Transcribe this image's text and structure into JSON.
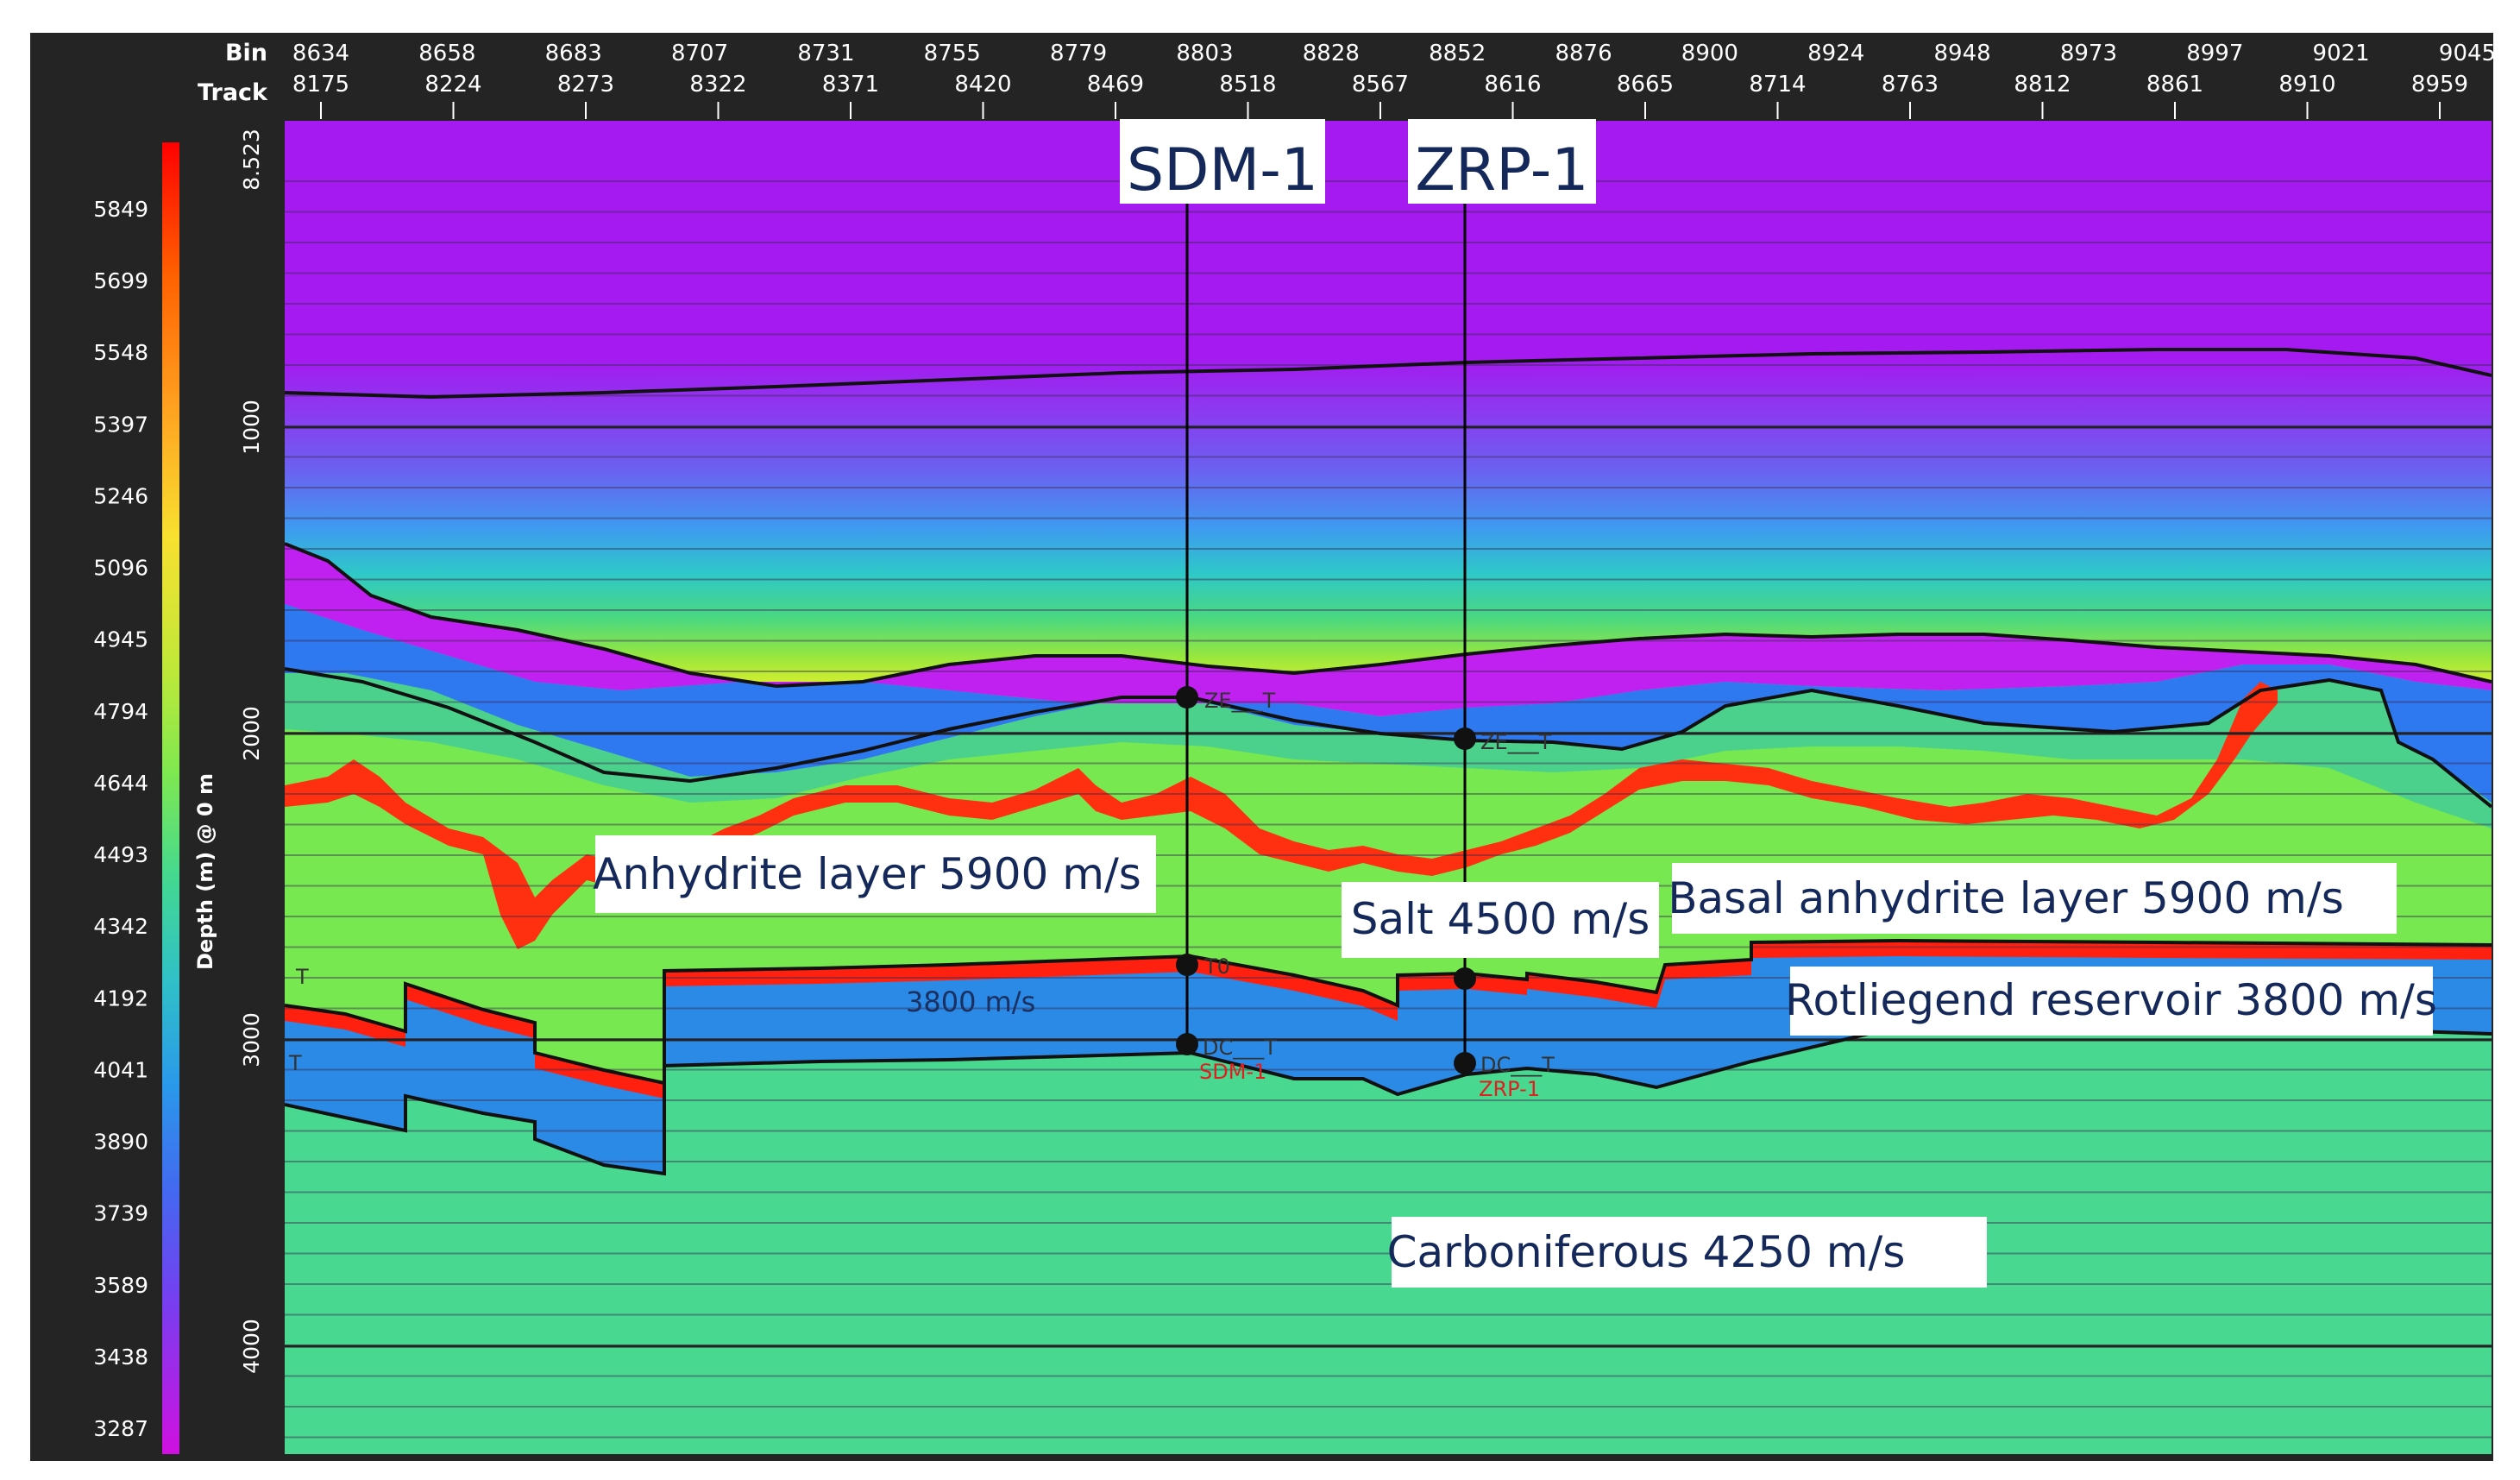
{
  "axis": {
    "bin_label": "Bin",
    "track_label": "Track",
    "bins": [
      "8634",
      "8658",
      "8683",
      "8707",
      "8731",
      "8755",
      "8779",
      "8803",
      "8828",
      "8852",
      "8876",
      "8900",
      "8924",
      "8948",
      "8973",
      "8997",
      "9021",
      "9045"
    ],
    "tracks": [
      "8175",
      "8224",
      "8273",
      "8322",
      "8371",
      "8420",
      "8469",
      "8518",
      "8567",
      "8616",
      "8665",
      "8714",
      "8763",
      "8812",
      "8861",
      "8910",
      "8959"
    ],
    "depth_label": "Depth (m) @ 0 m",
    "depth_ticks": [
      "8.523",
      "1000",
      "2000",
      "3000",
      "4000"
    ]
  },
  "colorbar": {
    "values": [
      "5849",
      "5699",
      "5548",
      "5397",
      "5246",
      "5096",
      "4945",
      "4794",
      "4644",
      "4493",
      "4342",
      "4192",
      "4041",
      "3890",
      "3739",
      "3589",
      "3438",
      "3287"
    ],
    "colors": [
      "#ff0000",
      "#ff5a00",
      "#ff9a10",
      "#ffcc20",
      "#f0e830",
      "#c8e83a",
      "#8ee84a",
      "#56e070",
      "#3ed8a0",
      "#36c6c6",
      "#2aa6e6",
      "#3a7af0",
      "#5a56f0",
      "#7a3ef0",
      "#9a2ef0",
      "#b420f0",
      "#c818e8",
      "#d010e0"
    ]
  },
  "wells": [
    {
      "name": "SDM-1",
      "upper_marker": "ZE___T",
      "lower_marker": "DC___T",
      "bottom_label": "SDM-1",
      "mid_marker": "T0"
    },
    {
      "name": "ZRP-1",
      "upper_marker": "ZE___T",
      "lower_marker": "DC___T",
      "bottom_label": "ZRP-1",
      "mid_marker": ""
    }
  ],
  "labels": {
    "anhydrite": "Anhydrite layer 5900 m/s",
    "salt": "Salt 4500 m/s",
    "basal": "Basal anhydrite layer 5900 m/s",
    "rotliegend": "Rotliegend reservoir 3800 m/s",
    "carboniferous": "Carboniferous 4250 m/s",
    "inline_velocity": "3800 m/s",
    "left_T1": "T",
    "left_T2": "T"
  },
  "colors": {
    "overburden_top": "#a418f0",
    "carboniferous": "#48d890",
    "salt_green": "#78e850",
    "rotliegend": "#2a8ae6",
    "red_layer": "#ff3010",
    "zechstein_blue": "#2e78f0",
    "frame": "#242424"
  }
}
